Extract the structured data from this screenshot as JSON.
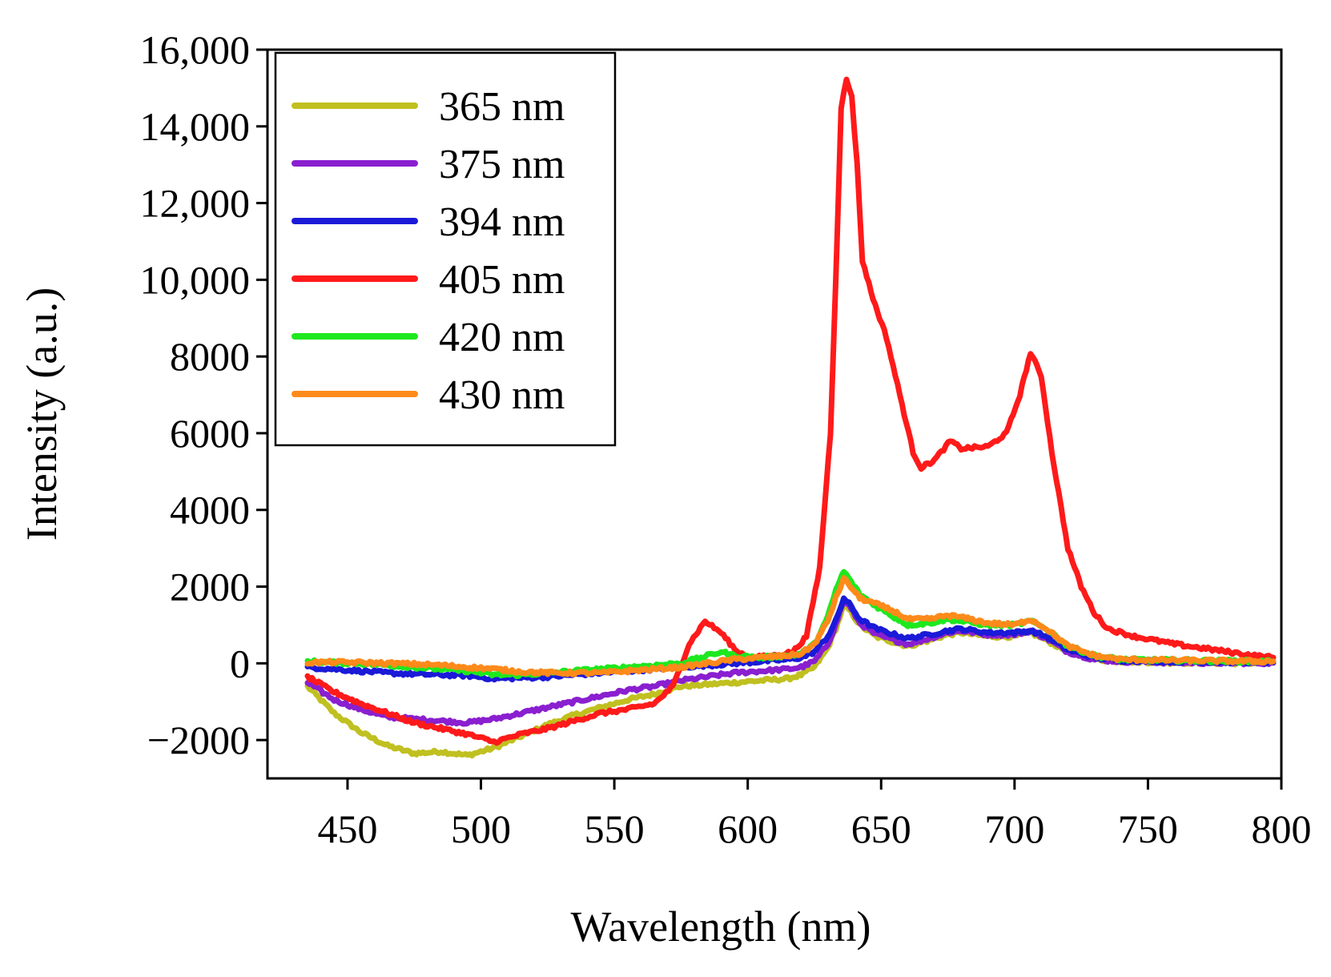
{
  "chart_data": {
    "type": "line",
    "title": "",
    "xlabel": "Wavelength (nm)",
    "ylabel": "Intensity (a.u.)",
    "xlim": [
      420,
      800
    ],
    "ylim": [
      -3000,
      16000
    ],
    "xticks": [
      450,
      500,
      550,
      600,
      650,
      700,
      750,
      800
    ],
    "xtick_labels": [
      "450",
      "500",
      "550",
      "600",
      "650",
      "700",
      "750",
      "800"
    ],
    "yticks": [
      -2000,
      0,
      2000,
      4000,
      6000,
      8000,
      10000,
      12000,
      14000,
      16000
    ],
    "ytick_labels": [
      "−2000",
      "0",
      "2000",
      "4000",
      "6000",
      "8000",
      "10,000",
      "12,000",
      "14,000",
      "16,000"
    ],
    "grid": false,
    "legend_position": "top-left",
    "series": [
      {
        "name": "365 nm",
        "color": "#c0c020",
        "points": [
          [
            435,
            -600
          ],
          [
            445,
            -1300
          ],
          [
            455,
            -1800
          ],
          [
            465,
            -2150
          ],
          [
            475,
            -2350
          ],
          [
            485,
            -2300
          ],
          [
            495,
            -2400
          ],
          [
            505,
            -2200
          ],
          [
            515,
            -1900
          ],
          [
            525,
            -1600
          ],
          [
            535,
            -1350
          ],
          [
            545,
            -1150
          ],
          [
            555,
            -950
          ],
          [
            565,
            -800
          ],
          [
            575,
            -600
          ],
          [
            585,
            -550
          ],
          [
            595,
            -500
          ],
          [
            605,
            -450
          ],
          [
            615,
            -400
          ],
          [
            620,
            -300
          ],
          [
            625,
            -100
          ],
          [
            630,
            400
          ],
          [
            633,
            900
          ],
          [
            636,
            1500
          ],
          [
            638,
            1400
          ],
          [
            642,
            1000
          ],
          [
            648,
            700
          ],
          [
            655,
            550
          ],
          [
            660,
            450
          ],
          [
            668,
            600
          ],
          [
            675,
            750
          ],
          [
            680,
            800
          ],
          [
            690,
            700
          ],
          [
            700,
            700
          ],
          [
            706,
            800
          ],
          [
            712,
            600
          ],
          [
            720,
            300
          ],
          [
            730,
            100
          ],
          [
            740,
            50
          ],
          [
            760,
            20
          ],
          [
            780,
            10
          ],
          [
            797,
            10
          ]
        ]
      },
      {
        "name": "375 nm",
        "color": "#8a1fd0",
        "points": [
          [
            435,
            -500
          ],
          [
            445,
            -950
          ],
          [
            455,
            -1200
          ],
          [
            465,
            -1400
          ],
          [
            475,
            -1450
          ],
          [
            485,
            -1500
          ],
          [
            495,
            -1550
          ],
          [
            505,
            -1450
          ],
          [
            515,
            -1300
          ],
          [
            525,
            -1150
          ],
          [
            535,
            -1000
          ],
          [
            545,
            -850
          ],
          [
            555,
            -700
          ],
          [
            565,
            -600
          ],
          [
            575,
            -450
          ],
          [
            585,
            -350
          ],
          [
            595,
            -250
          ],
          [
            605,
            -200
          ],
          [
            615,
            -150
          ],
          [
            620,
            -100
          ],
          [
            625,
            50
          ],
          [
            630,
            500
          ],
          [
            633,
            1000
          ],
          [
            636,
            1650
          ],
          [
            638,
            1500
          ],
          [
            642,
            1050
          ],
          [
            648,
            750
          ],
          [
            655,
            600
          ],
          [
            660,
            500
          ],
          [
            668,
            650
          ],
          [
            675,
            800
          ],
          [
            680,
            850
          ],
          [
            690,
            750
          ],
          [
            700,
            750
          ],
          [
            706,
            850
          ],
          [
            712,
            650
          ],
          [
            720,
            300
          ],
          [
            730,
            100
          ],
          [
            740,
            50
          ],
          [
            760,
            20
          ],
          [
            780,
            10
          ],
          [
            797,
            10
          ]
        ]
      },
      {
        "name": "394 nm",
        "color": "#1a1ad8",
        "points": [
          [
            435,
            -100
          ],
          [
            445,
            -150
          ],
          [
            455,
            -200
          ],
          [
            465,
            -250
          ],
          [
            475,
            -280
          ],
          [
            485,
            -300
          ],
          [
            495,
            -320
          ],
          [
            505,
            -400
          ],
          [
            515,
            -380
          ],
          [
            525,
            -350
          ],
          [
            535,
            -300
          ],
          [
            545,
            -250
          ],
          [
            555,
            -200
          ],
          [
            565,
            -150
          ],
          [
            575,
            -100
          ],
          [
            585,
            -50
          ],
          [
            595,
            0
          ],
          [
            605,
            50
          ],
          [
            615,
            100
          ],
          [
            620,
            150
          ],
          [
            625,
            300
          ],
          [
            630,
            700
          ],
          [
            633,
            1100
          ],
          [
            636,
            1700
          ],
          [
            638,
            1550
          ],
          [
            642,
            1150
          ],
          [
            648,
            900
          ],
          [
            655,
            750
          ],
          [
            660,
            650
          ],
          [
            668,
            750
          ],
          [
            675,
            850
          ],
          [
            680,
            900
          ],
          [
            690,
            800
          ],
          [
            700,
            800
          ],
          [
            706,
            850
          ],
          [
            712,
            700
          ],
          [
            720,
            350
          ],
          [
            730,
            150
          ],
          [
            740,
            80
          ],
          [
            760,
            50
          ],
          [
            780,
            30
          ],
          [
            797,
            30
          ]
        ]
      },
      {
        "name": "405 nm",
        "color": "#ff1a1a",
        "points": [
          [
            435,
            -350
          ],
          [
            445,
            -750
          ],
          [
            455,
            -1050
          ],
          [
            465,
            -1300
          ],
          [
            475,
            -1550
          ],
          [
            485,
            -1700
          ],
          [
            495,
            -1850
          ],
          [
            500,
            -1950
          ],
          [
            505,
            -2050
          ],
          [
            515,
            -1850
          ],
          [
            525,
            -1700
          ],
          [
            535,
            -1500
          ],
          [
            545,
            -1300
          ],
          [
            555,
            -1200
          ],
          [
            565,
            -1050
          ],
          [
            572,
            -600
          ],
          [
            578,
            500
          ],
          [
            584,
            1100
          ],
          [
            590,
            800
          ],
          [
            596,
            300
          ],
          [
            602,
            150
          ],
          [
            610,
            200
          ],
          [
            617,
            300
          ],
          [
            622,
            700
          ],
          [
            627,
            2500
          ],
          [
            631,
            6000
          ],
          [
            633,
            10000
          ],
          [
            635,
            14500
          ],
          [
            637,
            15200
          ],
          [
            639,
            14800
          ],
          [
            641,
            13000
          ],
          [
            643,
            10500
          ],
          [
            647,
            9500
          ],
          [
            652,
            8500
          ],
          [
            657,
            7000
          ],
          [
            662,
            5500
          ],
          [
            665,
            5100
          ],
          [
            670,
            5300
          ],
          [
            676,
            5800
          ],
          [
            680,
            5600
          ],
          [
            690,
            5650
          ],
          [
            697,
            6000
          ],
          [
            702,
            7000
          ],
          [
            706,
            8100
          ],
          [
            710,
            7500
          ],
          [
            714,
            5500
          ],
          [
            720,
            3000
          ],
          [
            725,
            2000
          ],
          [
            730,
            1300
          ],
          [
            735,
            900
          ],
          [
            745,
            700
          ],
          [
            760,
            500
          ],
          [
            775,
            350
          ],
          [
            790,
            200
          ],
          [
            797,
            150
          ]
        ]
      },
      {
        "name": "420 nm",
        "color": "#1ee81e",
        "points": [
          [
            435,
            50
          ],
          [
            445,
            20
          ],
          [
            455,
            0
          ],
          [
            465,
            -50
          ],
          [
            475,
            -100
          ],
          [
            485,
            -150
          ],
          [
            495,
            -200
          ],
          [
            505,
            -300
          ],
          [
            515,
            -300
          ],
          [
            525,
            -250
          ],
          [
            535,
            -200
          ],
          [
            545,
            -150
          ],
          [
            555,
            -100
          ],
          [
            565,
            -50
          ],
          [
            575,
            0
          ],
          [
            585,
            200
          ],
          [
            590,
            300
          ],
          [
            595,
            200
          ],
          [
            605,
            150
          ],
          [
            615,
            200
          ],
          [
            620,
            250
          ],
          [
            625,
            500
          ],
          [
            630,
            1200
          ],
          [
            633,
            1900
          ],
          [
            636,
            2400
          ],
          [
            638,
            2200
          ],
          [
            642,
            1800
          ],
          [
            648,
            1500
          ],
          [
            655,
            1200
          ],
          [
            660,
            1000
          ],
          [
            668,
            1050
          ],
          [
            675,
            1150
          ],
          [
            680,
            1100
          ],
          [
            690,
            1000
          ],
          [
            700,
            1000
          ],
          [
            706,
            1100
          ],
          [
            712,
            900
          ],
          [
            720,
            450
          ],
          [
            730,
            200
          ],
          [
            740,
            100
          ],
          [
            760,
            80
          ],
          [
            780,
            60
          ],
          [
            797,
            50
          ]
        ]
      },
      {
        "name": "430 nm",
        "color": "#ff8a1a",
        "points": [
          [
            435,
            20
          ],
          [
            445,
            30
          ],
          [
            455,
            20
          ],
          [
            465,
            0
          ],
          [
            475,
            -20
          ],
          [
            485,
            -50
          ],
          [
            495,
            -100
          ],
          [
            505,
            -150
          ],
          [
            515,
            -220
          ],
          [
            525,
            -250
          ],
          [
            535,
            -250
          ],
          [
            545,
            -250
          ],
          [
            555,
            -200
          ],
          [
            565,
            -150
          ],
          [
            575,
            -100
          ],
          [
            585,
            0
          ],
          [
            595,
            100
          ],
          [
            605,
            150
          ],
          [
            615,
            200
          ],
          [
            620,
            250
          ],
          [
            625,
            500
          ],
          [
            630,
            1100
          ],
          [
            633,
            1700
          ],
          [
            636,
            2200
          ],
          [
            638,
            2050
          ],
          [
            642,
            1700
          ],
          [
            648,
            1550
          ],
          [
            655,
            1350
          ],
          [
            660,
            1150
          ],
          [
            668,
            1150
          ],
          [
            675,
            1250
          ],
          [
            680,
            1200
          ],
          [
            690,
            1050
          ],
          [
            700,
            1000
          ],
          [
            706,
            1150
          ],
          [
            712,
            900
          ],
          [
            720,
            450
          ],
          [
            730,
            200
          ],
          [
            740,
            100
          ],
          [
            760,
            80
          ],
          [
            780,
            60
          ],
          [
            797,
            50
          ]
        ]
      }
    ]
  }
}
